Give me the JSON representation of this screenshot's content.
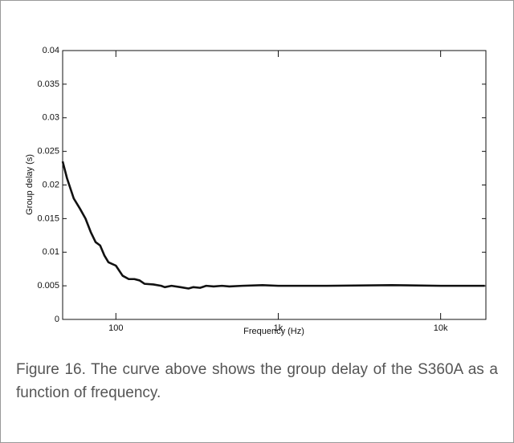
{
  "chart_data": {
    "type": "line",
    "xlabel": "Frequency (Hz)",
    "ylabel": "Group delay (s)",
    "caption": "Figure 16. The curve above shows the group delay of the S360A as a function of frequency.",
    "xscale": "log",
    "xlim": [
      47,
      19000
    ],
    "ylim": [
      0,
      0.04
    ],
    "xticks": [
      100,
      {
        "value": 1000,
        "label": "1k"
      },
      {
        "value": 10000,
        "label": "10k"
      }
    ],
    "yticks": [
      0,
      0.005,
      0.01,
      0.015,
      0.02,
      0.025,
      0.03,
      0.035,
      0.04
    ],
    "grid": false,
    "x": [
      47,
      50,
      55,
      60,
      65,
      70,
      75,
      80,
      85,
      90,
      100,
      110,
      120,
      130,
      140,
      150,
      170,
      190,
      200,
      220,
      250,
      280,
      300,
      330,
      360,
      400,
      450,
      500,
      600,
      800,
      1000,
      2000,
      5000,
      10000,
      18700
    ],
    "series": [
      {
        "name": "Group delay",
        "color": "#111111",
        "values": [
          0.0235,
          0.021,
          0.018,
          0.0165,
          0.015,
          0.013,
          0.0115,
          0.011,
          0.0095,
          0.0085,
          0.008,
          0.0065,
          0.006,
          0.006,
          0.0058,
          0.0053,
          0.0052,
          0.005,
          0.0048,
          0.005,
          0.0048,
          0.0046,
          0.0048,
          0.0047,
          0.005,
          0.0049,
          0.005,
          0.0049,
          0.005,
          0.0051,
          0.005,
          0.005,
          0.0051,
          0.005,
          0.005
        ]
      }
    ]
  }
}
